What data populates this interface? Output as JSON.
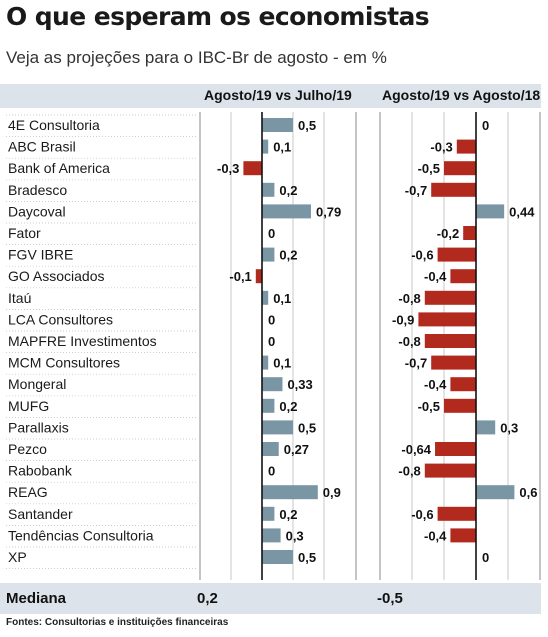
{
  "title": "O que esperam os economistas",
  "subtitle": "Veja as projeções para o IBC-Br de agosto - em %",
  "colors": {
    "bar_positive": "#7a96a5",
    "bar_negative": "#b22a1e",
    "header_bg": "#dde3ea"
  },
  "chart_data": {
    "type": "bar",
    "orientation": "horizontal",
    "categories": [
      "4E Consultoria",
      "ABC Brasil",
      "Bank of America",
      "Bradesco",
      "Daycoval",
      "Fator",
      "FGV IBRE",
      "GO Associados",
      "Itaú",
      "LCA Consultores",
      "MAPFRE Investimentos",
      "MCM Consultores",
      "Mongeral",
      "MUFG",
      "Parallaxis",
      "Pezco",
      "Rabobank",
      "REAG",
      "Santander",
      "Tendências Consultoria",
      "XP"
    ],
    "series": [
      {
        "name": "Agosto/19 vs Julho/19",
        "values": [
          0.5,
          0.1,
          -0.3,
          0.2,
          0.79,
          0,
          0.2,
          -0.1,
          0.1,
          0,
          0,
          0.1,
          0.33,
          0.2,
          0.5,
          0.27,
          0,
          0.9,
          0.2,
          0.3,
          0.5
        ],
        "labels": [
          "0,5",
          "0,1",
          "-0,3",
          "0,2",
          "0,79",
          "0",
          "0,2",
          "-0,1",
          "0,1",
          "0",
          "0",
          "0,1",
          "0,33",
          "0,2",
          "0,5",
          "0,27",
          "0",
          "0,9",
          "0,2",
          "0,3",
          "0,5"
        ]
      },
      {
        "name": "Agosto/19 vs Agosto/18",
        "values": [
          0,
          -0.3,
          -0.5,
          -0.7,
          0.44,
          -0.2,
          -0.6,
          -0.4,
          -0.8,
          -0.9,
          -0.8,
          -0.7,
          -0.4,
          -0.5,
          0.3,
          -0.64,
          -0.8,
          0.6,
          -0.6,
          -0.4,
          0
        ],
        "labels": [
          "0",
          "-0,3",
          "-0,5",
          "-0,7",
          "0,44",
          "-0,2",
          "-0,6",
          "-0,4",
          "-0,8",
          "-0,9",
          "-0,8",
          "-0,7",
          "-0,4",
          "-0,5",
          "0,3",
          "-0,64",
          "-0,8",
          "0,6",
          "-0,6",
          "-0,4",
          "0"
        ]
      }
    ],
    "median_label": "Mediana",
    "medians": [
      "0,2",
      "-0,5"
    ],
    "grid": true,
    "source": "Fontes: Consultorias e instituições financeiras"
  }
}
